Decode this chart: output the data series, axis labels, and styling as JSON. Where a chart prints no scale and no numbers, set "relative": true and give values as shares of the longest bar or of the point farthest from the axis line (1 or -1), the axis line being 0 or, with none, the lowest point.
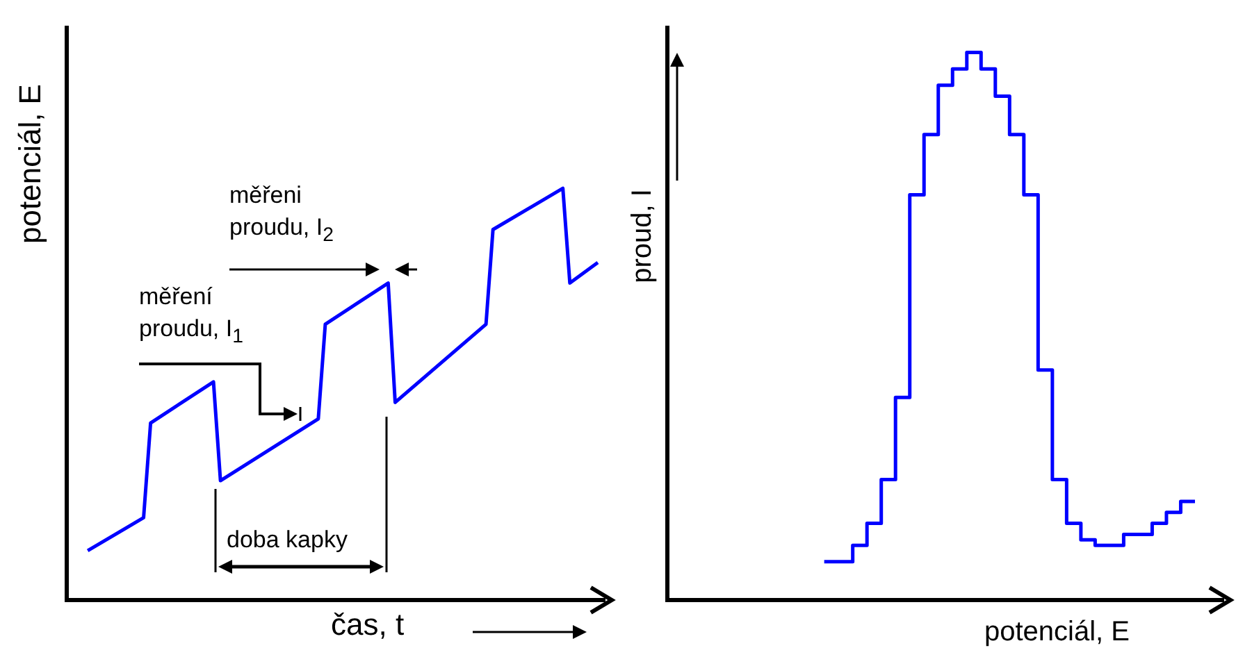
{
  "chart_data": [
    {
      "type": "line",
      "relative": true,
      "tick_labels": false,
      "color": "#0000ff",
      "xlabel": "čas, t",
      "ylabel": "potenciál, E",
      "categories": [
        null,
        null,
        null,
        null,
        null,
        null,
        null,
        null,
        null,
        null,
        null,
        null,
        null,
        null,
        null,
        null,
        null,
        null,
        null,
        null,
        null,
        null,
        null,
        null,
        null,
        null,
        null,
        null,
        null,
        null,
        null,
        null,
        null,
        null,
        null,
        null,
        null,
        null,
        null,
        null,
        null,
        null,
        null,
        null,
        null,
        null,
        null,
        null,
        null,
        null,
        null,
        null,
        null,
        null,
        null,
        null,
        null,
        null,
        null,
        null,
        null,
        null,
        null,
        null,
        null,
        null,
        null,
        null,
        null,
        null,
        null,
        null,
        null,
        null,
        null,
        null,
        null,
        null
      ],
      "values": [
        null,
        null,
        null,
        0.12,
        null,
        null,
        null,
        null,
        null,
        null,
        null,
        0.2,
        0.43,
        null,
        null,
        null,
        null,
        null,
        null,
        null,
        null,
        0.53,
        0.29,
        null,
        null,
        null,
        null,
        null,
        null,
        null,
        null,
        null,
        null,
        null,
        null,
        null,
        0.44,
        0.67,
        null,
        null,
        null,
        null,
        null,
        null,
        null,
        null,
        0.77,
        0.48,
        null,
        null,
        null,
        null,
        null,
        null,
        null,
        null,
        null,
        null,
        null,
        null,
        0.67,
        0.9,
        null,
        null,
        null,
        null,
        null,
        null,
        null,
        null,
        null,
        1,
        0.77,
        null,
        null,
        null,
        0.82,
        null
      ],
      "annotations": [
        "měření proudu, I$_{1}$",
        "měřeni proudu, I$_{2}$",
        "doba kapky"
      ]
    },
    {
      "type": "step",
      "relative": true,
      "tick_labels": false,
      "color": "#0000ff",
      "xlabel": "potenciál, E",
      "ylabel": "proud, I",
      "categories": [
        null,
        null,
        null,
        null,
        null,
        null,
        null,
        null,
        null,
        null,
        null,
        null,
        null,
        null,
        null,
        null,
        null,
        null,
        null,
        null,
        null,
        null,
        null,
        null,
        null,
        null,
        null,
        null,
        null,
        null,
        null,
        null,
        null,
        null,
        null,
        null,
        null,
        null,
        null,
        null
      ],
      "values": [
        null,
        null,
        null,
        null,
        null,
        null,
        null,
        null,
        null,
        null,
        null,
        0.07,
        0.07,
        0.07,
        0.1,
        0.14,
        0.22,
        0.37,
        0.74,
        0.85,
        0.94,
        0.97,
        1,
        0.97,
        0.92,
        0.85,
        0.74,
        0.42,
        0.22,
        0.14,
        0.11,
        0.1,
        0.1,
        0.12,
        0.12,
        0.14,
        0.16,
        0.18,
        null,
        null
      ]
    }
  ]
}
